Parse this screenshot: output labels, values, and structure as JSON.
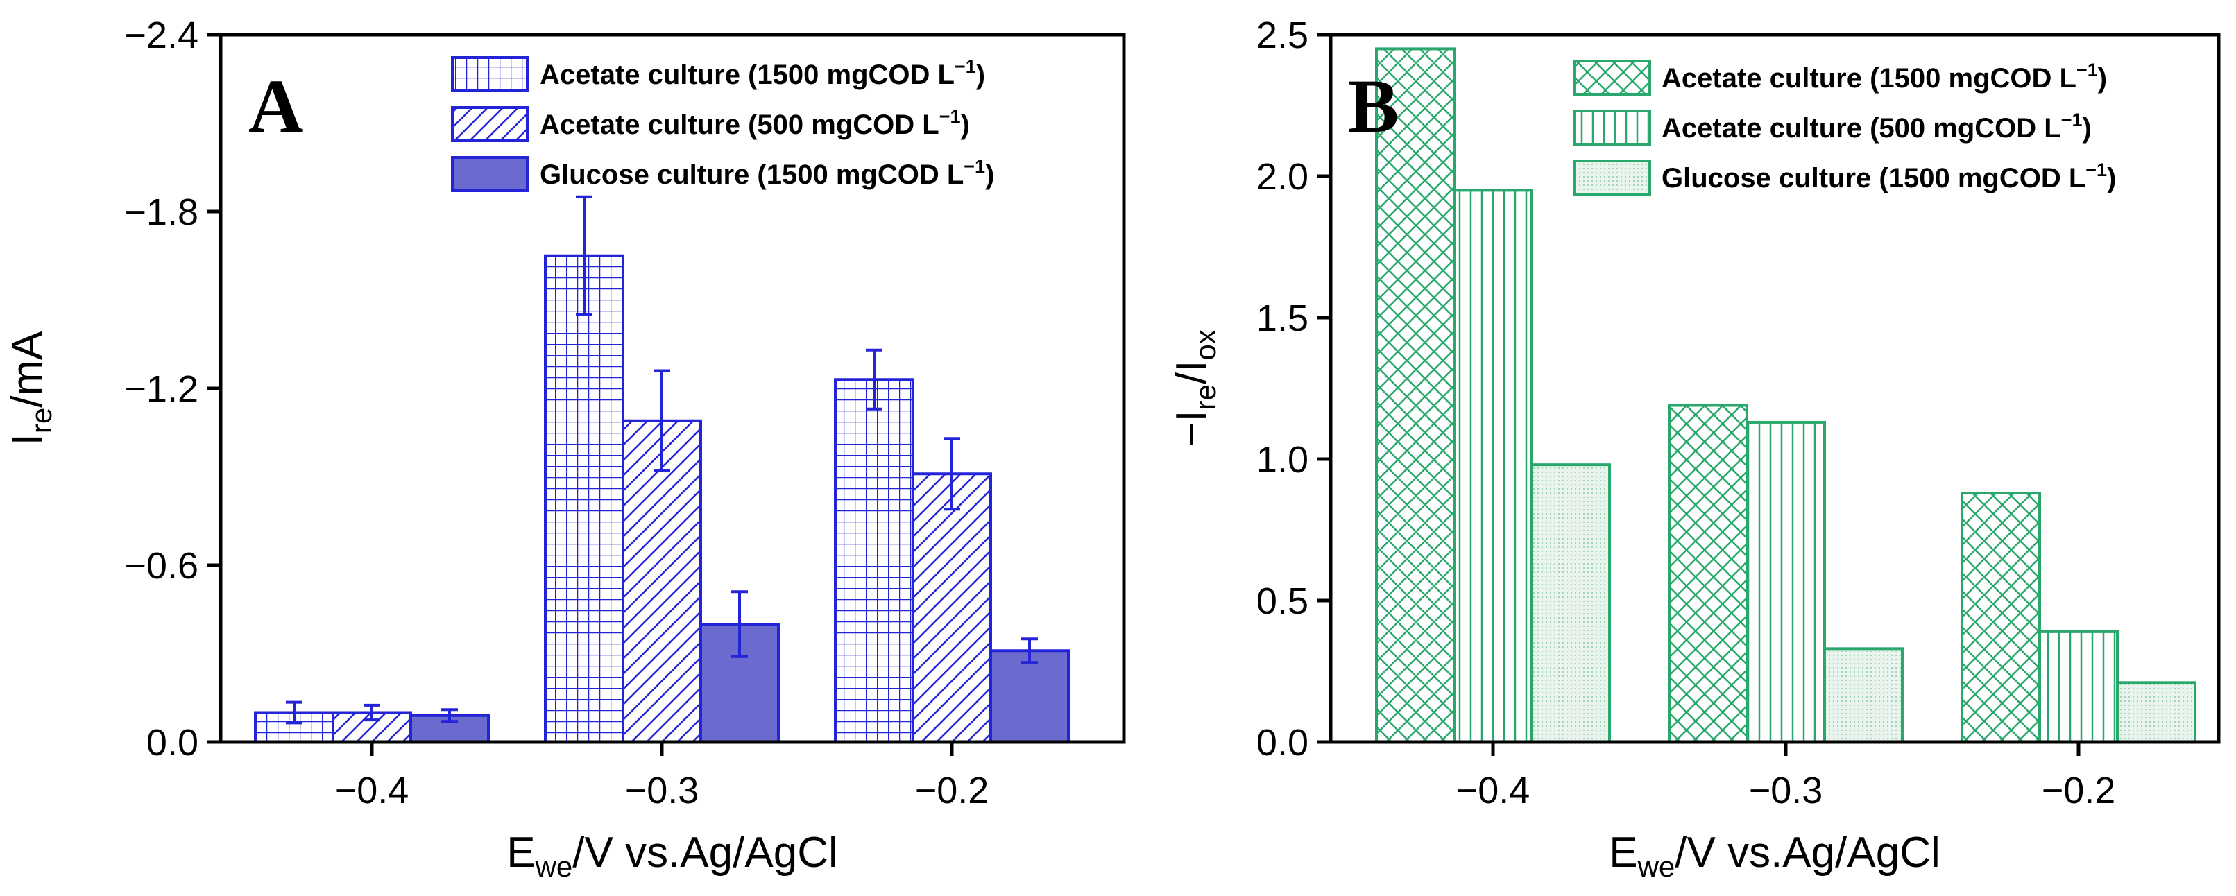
{
  "colors": {
    "panel_a": "#2323d8",
    "panel_a_fill": "#6b6bcf",
    "panel_b": "#2aa86c",
    "panel_b_fill": "#e6f3ec"
  },
  "chart_data": [
    {
      "type": "bar",
      "panel_label": "A",
      "categories": [
        "−0.4",
        "−0.3",
        "−0.2"
      ],
      "series": [
        {
          "name": "Acetate culture (1500 mgCOD L",
          "superscript": "−1",
          "suffix": ")",
          "pattern": "grid",
          "values": [
            -0.1,
            -1.65,
            -1.23
          ],
          "errors": [
            0.035,
            0.2,
            0.1
          ]
        },
        {
          "name": "Acetate culture (500 mgCOD L",
          "superscript": "−1",
          "suffix": ")",
          "pattern": "diagonal",
          "values": [
            -0.1,
            -1.09,
            -0.91
          ],
          "errors": [
            0.025,
            0.17,
            0.12
          ]
        },
        {
          "name": "Glucose culture (1500 mgCOD L",
          "superscript": "−1",
          "suffix": ")",
          "pattern": "solid",
          "values": [
            -0.09,
            -0.4,
            -0.31
          ],
          "errors": [
            0.02,
            0.11,
            0.04
          ]
        }
      ],
      "xlabel": {
        "main": "E",
        "sub": "we",
        "rest": "/V vs.Ag/AgCl"
      },
      "ylabel": {
        "main": "I",
        "sub": "re",
        "rest": "/mA"
      },
      "ylim": [
        0.0,
        -2.4
      ],
      "yticks": [
        "0.0",
        "−0.6",
        "−1.2",
        "−1.8",
        "−2.4"
      ],
      "ytick_values": [
        0.0,
        -0.6,
        -1.2,
        -1.8,
        -2.4
      ],
      "legend": "top-right",
      "grid": false
    },
    {
      "type": "bar",
      "panel_label": "B",
      "categories": [
        "−0.4",
        "−0.3",
        "−0.2"
      ],
      "series": [
        {
          "name": "Acetate culture (1500 mgCOD L",
          "superscript": "−1",
          "suffix": ")",
          "pattern": "crosshatch",
          "values": [
            2.45,
            1.19,
            0.88
          ]
        },
        {
          "name": "Acetate culture (500 mgCOD L",
          "superscript": "−1",
          "suffix": ")",
          "pattern": "vertical",
          "values": [
            1.95,
            1.13,
            0.39
          ]
        },
        {
          "name": "Glucose culture (1500 mgCOD L",
          "superscript": "−1",
          "suffix": ")",
          "pattern": "dots",
          "values": [
            0.98,
            0.33,
            0.21
          ]
        }
      ],
      "xlabel": {
        "main": "E",
        "sub": "we",
        "rest": "/V vs.Ag/AgCl"
      },
      "ylabel": {
        "main": "−I",
        "sub": "re",
        "mid": "/I",
        "sub2": "ox"
      },
      "ylim": [
        0.0,
        2.5
      ],
      "yticks": [
        "0.0",
        "0.5",
        "1.0",
        "1.5",
        "2.0",
        "2.5"
      ],
      "ytick_values": [
        0.0,
        0.5,
        1.0,
        1.5,
        2.0,
        2.5
      ],
      "legend": "top-right",
      "grid": false
    }
  ]
}
